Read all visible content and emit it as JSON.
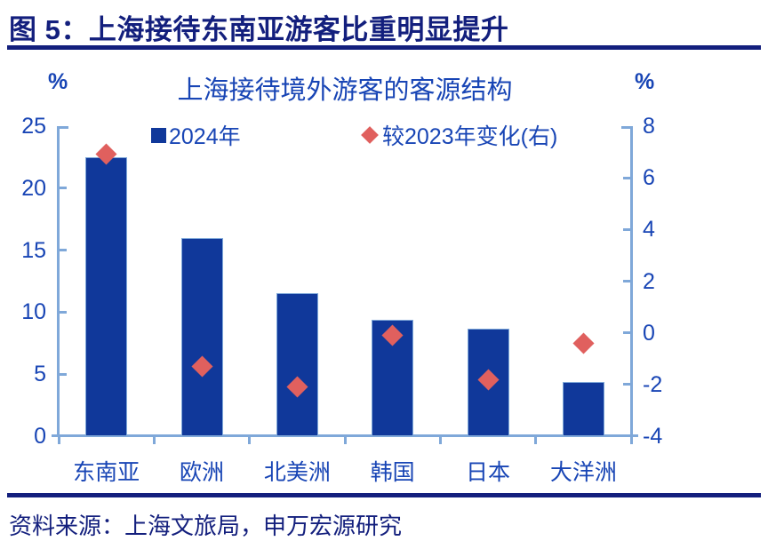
{
  "header": {
    "title": "图 5：上海接待东南亚游客比重明显提升"
  },
  "footer": {
    "source": "资料来源：上海文旅局，申万宏源研究"
  },
  "chart_data": {
    "type": "bar",
    "title": "上海接待境外游客的客源结构",
    "categories": [
      "东南亚",
      "欧洲",
      "北美洲",
      "韩国",
      "日本",
      "大洋洲"
    ],
    "series": [
      {
        "name": "2024年",
        "type": "bar",
        "axis": "left",
        "values": [
          22.5,
          16.0,
          11.5,
          9.4,
          8.7,
          4.4
        ]
      },
      {
        "name": "较2023年变化(右)",
        "type": "scatter",
        "marker": "diamond",
        "axis": "right",
        "values": [
          6.9,
          -1.3,
          -2.1,
          -0.1,
          -1.8,
          -0.4
        ]
      }
    ],
    "left_axis": {
      "unit": "%",
      "min": 0,
      "max": 25,
      "ticks": [
        0,
        5,
        10,
        15,
        20,
        25
      ]
    },
    "right_axis": {
      "unit": "%",
      "min": -4,
      "max": 8,
      "ticks": [
        -4,
        -2,
        0,
        2,
        4,
        6,
        8
      ]
    },
    "legend_position": "top",
    "grid": false,
    "colors": {
      "bar": "#10389A",
      "diamond": "#E0605E",
      "axis": "#7FA8D9",
      "text": "#1845B5",
      "dark": "#131F7D"
    }
  }
}
